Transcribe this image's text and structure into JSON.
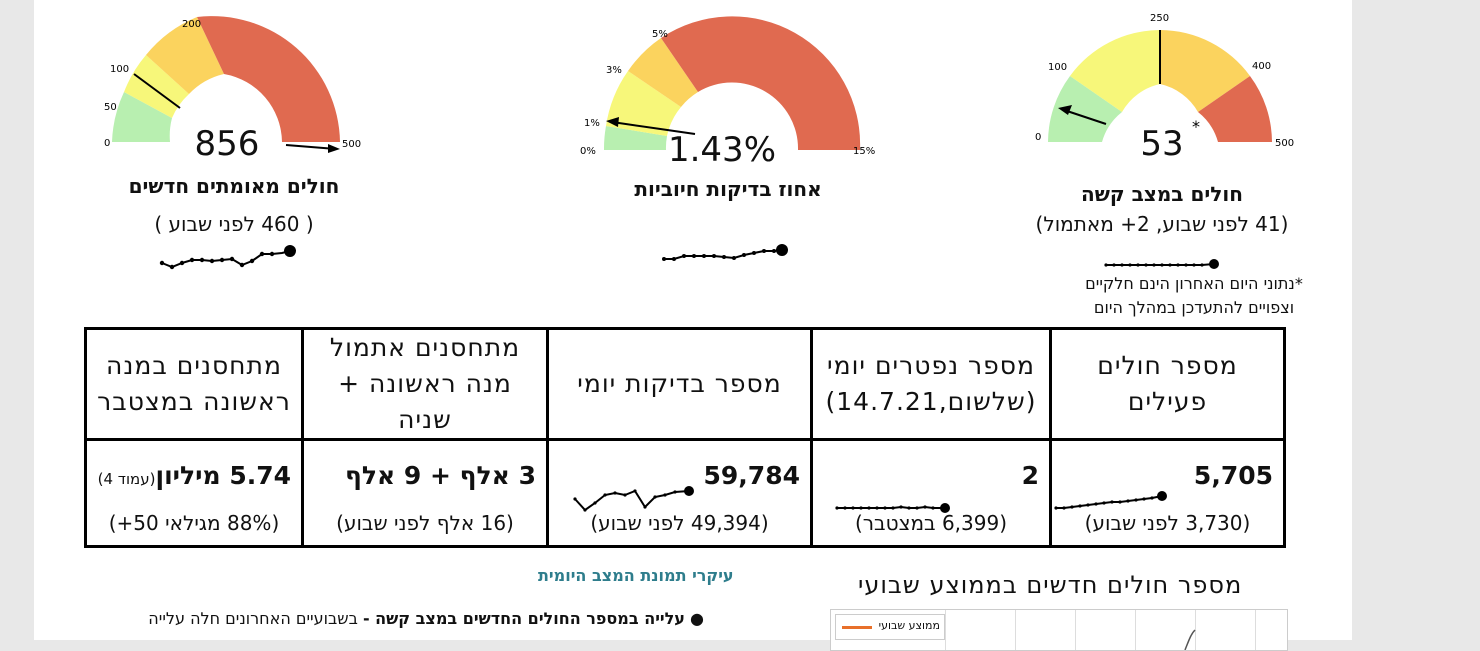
{
  "gauges": [
    {
      "id": "new-cases",
      "value": "856",
      "title": "חולים מאומתים חדשים",
      "subtitle": "( 460 לפני שבוע )",
      "ticks": [
        "0",
        "50",
        "100",
        "200",
        "500"
      ],
      "colors": [
        "#b8efb0",
        "#f7f77a",
        "#fbd35e",
        "#e06a50"
      ]
    },
    {
      "id": "positive-rate",
      "value": "1.43%",
      "title": "אחוז בדיקות חיוביות",
      "subtitle": "",
      "ticks": [
        "0%",
        "1%",
        "3%",
        "5%",
        "15%"
      ],
      "colors": [
        "#b8efb0",
        "#f7f77a",
        "#fbd35e",
        "#e06a50"
      ]
    },
    {
      "id": "severe",
      "value": "53",
      "title": "חולים במצב קשה",
      "subtitle": "(41 לפני שבוע, 2+ מאתמול)",
      "ticks": [
        "0",
        "100",
        "250",
        "400",
        "500"
      ],
      "asterisk": "*",
      "colors": [
        "#b8efb0",
        "#f7f77a",
        "#fbd35e",
        "#e06a50"
      ]
    }
  ],
  "note": {
    "line1": "*נתוני היום האחרון הינם חלקיים",
    "line2": "וצפויים להתעדכן במהלך היום"
  },
  "table": {
    "headers": [
      [
        "מספר חולים",
        "פעילים"
      ],
      [
        "מספר נפטרים יומי",
        "(שלשום,14.7.21)"
      ],
      [
        "מספר בדיקות יומי"
      ],
      [
        "מתחסנים אתמול",
        "מנה ראשונה + שניה"
      ],
      [
        "מתחסנים במנה",
        "ראשונה במצטבר"
      ]
    ],
    "cells": [
      {
        "value": "5,705",
        "sub": "(3,730 לפני שבוע)"
      },
      {
        "value": "2",
        "sub": "(6,399 במצטבר)"
      },
      {
        "value": "59,784",
        "sub": "(49,394 לפני שבוע)"
      },
      {
        "value": "3 אלף + 9 אלף",
        "sub": "(16 אלף לפני שבוע)"
      },
      {
        "value": "5.74 מיליון",
        "value_note": "(עמוד 4)",
        "sub": "(88% מגילאי 50+)"
      }
    ]
  },
  "section_title": "עיקרי תמונת המצב היומית",
  "chart_title": "מספר חולים חדשים בממוצע שבועי",
  "legend_label": "ממוצע שבועי",
  "bullet": {
    "bold": "עלייה במספר החולים החדשים במצב קשה -",
    "text": "בשבועיים האחרונים חלה עלייה"
  },
  "colors": {
    "green": "#b8efb0",
    "yellow": "#f7f77a",
    "orange": "#fbd35e",
    "red": "#e06a50",
    "teal_heading": "#2e7d8c",
    "legend_line": "#e8702a"
  }
}
